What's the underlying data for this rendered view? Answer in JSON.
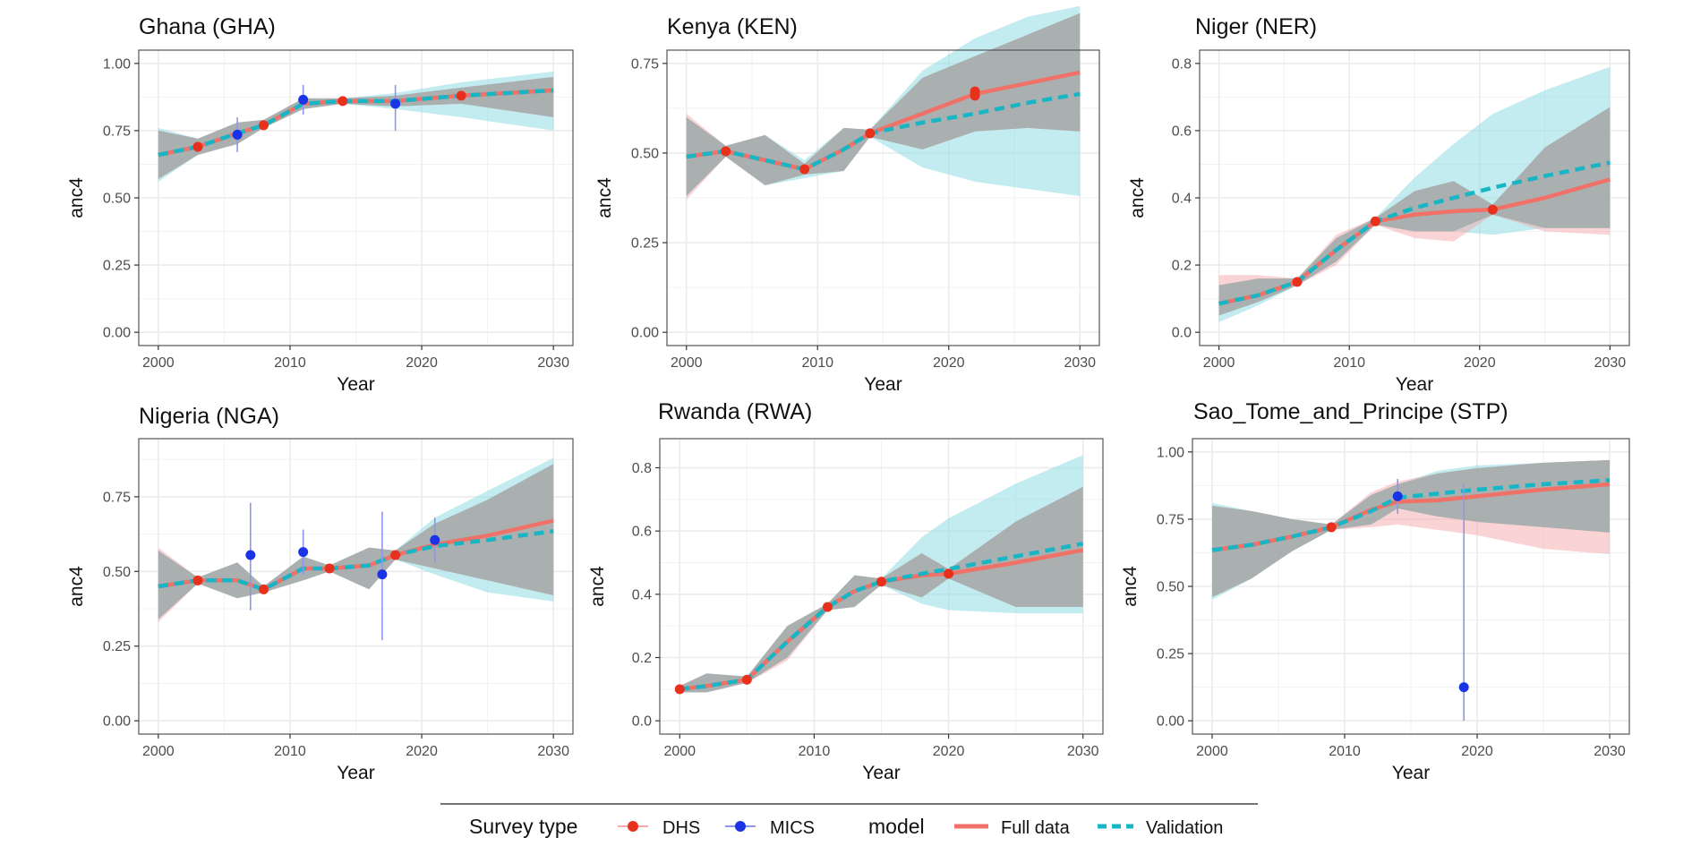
{
  "legend": {
    "survey_title": "Survey type",
    "survey_items": [
      {
        "label": "DHS",
        "color": "#e8311c"
      },
      {
        "label": "MICS",
        "color": "#1a33e6"
      }
    ],
    "model_title": "model",
    "model_items": [
      {
        "label": "Full data",
        "color": "#f07167",
        "dash": false
      },
      {
        "label": "Validation",
        "color": "#18b5c4",
        "dash": true
      }
    ]
  },
  "colors": {
    "full_line": "#f07167",
    "full_band": "#f5a9a9",
    "val_line": "#18b5c4",
    "val_band": "#8fdce3",
    "overlap_band": "#9aa5a5",
    "dhs": "#e8311c",
    "mics": "#1a33e6",
    "mics_bar": "#8d96ee",
    "grid": "#ebebeb",
    "panel_border": "#555555"
  },
  "chart_data": [
    {
      "type": "line",
      "title": "Ghana (GHA)",
      "xlabel": "Year",
      "ylabel": "anc4",
      "xlim": [
        2000,
        2030
      ],
      "ylim": [
        0,
        1
      ],
      "xticks": [
        "2000",
        "2010",
        "2020",
        "2030"
      ],
      "yticks": [
        "0.00",
        "0.25",
        "0.50",
        "0.75",
        "1.00"
      ],
      "series": [
        {
          "name": "Full data",
          "x": [
            2000,
            2003,
            2006,
            2008,
            2011,
            2014,
            2018,
            2023,
            2030
          ],
          "y": [
            0.66,
            0.69,
            0.74,
            0.77,
            0.85,
            0.86,
            0.86,
            0.88,
            0.9
          ],
          "lower": [
            0.57,
            0.66,
            0.7,
            0.76,
            0.83,
            0.85,
            0.84,
            0.85,
            0.8
          ],
          "upper": [
            0.75,
            0.72,
            0.78,
            0.79,
            0.87,
            0.87,
            0.88,
            0.91,
            0.95
          ]
        },
        {
          "name": "Validation",
          "x": [
            2000,
            2003,
            2006,
            2008,
            2011,
            2014,
            2018,
            2023,
            2030
          ],
          "y": [
            0.66,
            0.69,
            0.74,
            0.77,
            0.85,
            0.86,
            0.86,
            0.88,
            0.9
          ],
          "lower": [
            0.56,
            0.66,
            0.7,
            0.76,
            0.83,
            0.85,
            0.83,
            0.8,
            0.75
          ],
          "upper": [
            0.76,
            0.72,
            0.78,
            0.79,
            0.87,
            0.87,
            0.89,
            0.93,
            0.97
          ]
        }
      ],
      "points": [
        {
          "survey": "DHS",
          "x": 2003,
          "y": 0.69
        },
        {
          "survey": "DHS",
          "x": 2008,
          "y": 0.77
        },
        {
          "survey": "DHS",
          "x": 2014,
          "y": 0.86
        },
        {
          "survey": "DHS",
          "x": 2023,
          "y": 0.88
        },
        {
          "survey": "MICS",
          "x": 2006,
          "y": 0.735,
          "lo": 0.67,
          "hi": 0.8
        },
        {
          "survey": "MICS",
          "x": 2011,
          "y": 0.865,
          "lo": 0.81,
          "hi": 0.92
        },
        {
          "survey": "MICS",
          "x": 2018,
          "y": 0.85,
          "lo": 0.75,
          "hi": 0.92
        }
      ]
    },
    {
      "type": "line",
      "title": "Kenya (KEN)",
      "xlabel": "Year",
      "ylabel": "anc4",
      "xlim": [
        2000,
        2030
      ],
      "ylim": [
        0,
        0.75
      ],
      "xticks": [
        "2000",
        "2010",
        "2020",
        "2030"
      ],
      "yticks": [
        "0.00",
        "0.25",
        "0.50",
        "0.75"
      ],
      "series": [
        {
          "name": "Full data",
          "x": [
            2000,
            2003,
            2006,
            2009,
            2012,
            2014,
            2018,
            2022,
            2026,
            2030
          ],
          "y": [
            0.49,
            0.505,
            0.48,
            0.455,
            0.51,
            0.555,
            0.61,
            0.665,
            0.695,
            0.725
          ],
          "lower": [
            0.37,
            0.49,
            0.41,
            0.44,
            0.45,
            0.545,
            0.51,
            0.56,
            0.57,
            0.56
          ],
          "upper": [
            0.61,
            0.52,
            0.55,
            0.47,
            0.57,
            0.565,
            0.71,
            0.77,
            0.83,
            0.89
          ]
        },
        {
          "name": "Validation",
          "x": [
            2000,
            2003,
            2006,
            2009,
            2012,
            2014,
            2018,
            2022,
            2026,
            2030
          ],
          "y": [
            0.49,
            0.505,
            0.48,
            0.455,
            0.51,
            0.555,
            0.585,
            0.61,
            0.64,
            0.665
          ],
          "lower": [
            0.38,
            0.49,
            0.41,
            0.43,
            0.45,
            0.545,
            0.46,
            0.42,
            0.4,
            0.38
          ],
          "upper": [
            0.6,
            0.52,
            0.55,
            0.48,
            0.57,
            0.565,
            0.73,
            0.82,
            0.88,
            0.91
          ]
        }
      ],
      "points": [
        {
          "survey": "DHS",
          "x": 2003,
          "y": 0.505
        },
        {
          "survey": "DHS",
          "x": 2009,
          "y": 0.455
        },
        {
          "survey": "DHS",
          "x": 2014,
          "y": 0.555
        },
        {
          "survey": "DHS",
          "x": 2022,
          "y": 0.66
        },
        {
          "survey": "DHS",
          "x": 2022,
          "y": 0.672
        }
      ]
    },
    {
      "type": "line",
      "title": "Niger (NER)",
      "xlabel": "Year",
      "ylabel": "anc4",
      "xlim": [
        2000,
        2030
      ],
      "ylim": [
        0,
        0.8
      ],
      "xticks": [
        "2000",
        "2010",
        "2020",
        "2030"
      ],
      "yticks": [
        "0.0",
        "0.2",
        "0.4",
        "0.6",
        "0.8"
      ],
      "series": [
        {
          "name": "Full data",
          "x": [
            2000,
            2003,
            2006,
            2009,
            2012,
            2015,
            2018,
            2021,
            2025,
            2030
          ],
          "y": [
            0.085,
            0.11,
            0.15,
            0.245,
            0.33,
            0.35,
            0.36,
            0.365,
            0.4,
            0.455
          ],
          "lower": [
            0.05,
            0.09,
            0.14,
            0.2,
            0.32,
            0.28,
            0.27,
            0.35,
            0.3,
            0.29
          ],
          "upper": [
            0.17,
            0.17,
            0.16,
            0.29,
            0.34,
            0.42,
            0.45,
            0.38,
            0.55,
            0.67
          ]
        },
        {
          "name": "Validation",
          "x": [
            2000,
            2003,
            2006,
            2009,
            2012,
            2015,
            2018,
            2021,
            2025,
            2030
          ],
          "y": [
            0.085,
            0.11,
            0.15,
            0.245,
            0.33,
            0.37,
            0.4,
            0.43,
            0.465,
            0.505
          ],
          "lower": [
            0.03,
            0.08,
            0.14,
            0.21,
            0.32,
            0.3,
            0.3,
            0.29,
            0.31,
            0.31
          ],
          "upper": [
            0.14,
            0.16,
            0.16,
            0.28,
            0.34,
            0.46,
            0.56,
            0.65,
            0.72,
            0.79
          ]
        }
      ],
      "points": [
        {
          "survey": "DHS",
          "x": 2006,
          "y": 0.15
        },
        {
          "survey": "DHS",
          "x": 2012,
          "y": 0.33
        },
        {
          "survey": "DHS",
          "x": 2021,
          "y": 0.365
        }
      ]
    },
    {
      "type": "line",
      "title": "Nigeria (NGA)",
      "xlabel": "Year",
      "ylabel": "anc4",
      "xlim": [
        2000,
        2030
      ],
      "ylim": [
        0,
        0.9
      ],
      "xticks": [
        "2000",
        "2010",
        "2020",
        "2030"
      ],
      "yticks": [
        "0.00",
        "0.25",
        "0.50",
        "0.75"
      ],
      "series": [
        {
          "name": "Full data",
          "x": [
            2000,
            2003,
            2006,
            2008,
            2011,
            2013,
            2016,
            2018,
            2021,
            2025,
            2030
          ],
          "y": [
            0.45,
            0.47,
            0.47,
            0.44,
            0.51,
            0.51,
            0.52,
            0.555,
            0.59,
            0.62,
            0.67
          ],
          "lower": [
            0.33,
            0.46,
            0.41,
            0.43,
            0.47,
            0.5,
            0.44,
            0.54,
            0.51,
            0.47,
            0.42
          ],
          "upper": [
            0.58,
            0.48,
            0.53,
            0.45,
            0.55,
            0.52,
            0.58,
            0.57,
            0.66,
            0.74,
            0.86
          ]
        },
        {
          "name": "Validation",
          "x": [
            2000,
            2003,
            2006,
            2008,
            2011,
            2013,
            2016,
            2018,
            2021,
            2025,
            2030
          ],
          "y": [
            0.45,
            0.47,
            0.47,
            0.44,
            0.51,
            0.51,
            0.52,
            0.555,
            0.585,
            0.605,
            0.635
          ],
          "lower": [
            0.34,
            0.46,
            0.41,
            0.43,
            0.47,
            0.5,
            0.44,
            0.54,
            0.49,
            0.43,
            0.4
          ],
          "upper": [
            0.57,
            0.48,
            0.53,
            0.45,
            0.55,
            0.52,
            0.58,
            0.57,
            0.68,
            0.77,
            0.88
          ]
        }
      ],
      "points": [
        {
          "survey": "DHS",
          "x": 2003,
          "y": 0.47
        },
        {
          "survey": "DHS",
          "x": 2008,
          "y": 0.44
        },
        {
          "survey": "DHS",
          "x": 2013,
          "y": 0.51
        },
        {
          "survey": "DHS",
          "x": 2018,
          "y": 0.555
        },
        {
          "survey": "MICS",
          "x": 2007,
          "y": 0.555,
          "lo": 0.37,
          "hi": 0.73
        },
        {
          "survey": "MICS",
          "x": 2011,
          "y": 0.565,
          "lo": 0.49,
          "hi": 0.64
        },
        {
          "survey": "MICS",
          "x": 2017,
          "y": 0.49,
          "lo": 0.27,
          "hi": 0.7
        },
        {
          "survey": "MICS",
          "x": 2021,
          "y": 0.605,
          "lo": 0.53,
          "hi": 0.68
        }
      ]
    },
    {
      "type": "line",
      "title": "Rwanda (RWA)",
      "xlabel": "Year",
      "ylabel": "anc4",
      "xlim": [
        2000,
        2030
      ],
      "ylim": [
        0,
        0.85
      ],
      "xticks": [
        "2000",
        "2010",
        "2020",
        "2030"
      ],
      "yticks": [
        "0.0",
        "0.2",
        "0.4",
        "0.6",
        "0.8"
      ],
      "series": [
        {
          "name": "Full data",
          "x": [
            2000,
            2002,
            2005,
            2008,
            2011,
            2013,
            2015,
            2018,
            2020,
            2025,
            2030
          ],
          "y": [
            0.1,
            0.11,
            0.13,
            0.25,
            0.36,
            0.41,
            0.44,
            0.46,
            0.465,
            0.5,
            0.54
          ],
          "lower": [
            0.09,
            0.09,
            0.12,
            0.19,
            0.35,
            0.36,
            0.43,
            0.39,
            0.45,
            0.36,
            0.36
          ],
          "upper": [
            0.11,
            0.15,
            0.14,
            0.3,
            0.37,
            0.46,
            0.45,
            0.53,
            0.48,
            0.63,
            0.74
          ]
        },
        {
          "name": "Validation",
          "x": [
            2000,
            2002,
            2005,
            2008,
            2011,
            2013,
            2015,
            2018,
            2020,
            2025,
            2030
          ],
          "y": [
            0.1,
            0.11,
            0.13,
            0.25,
            0.36,
            0.41,
            0.44,
            0.465,
            0.48,
            0.52,
            0.56
          ],
          "lower": [
            0.09,
            0.09,
            0.12,
            0.2,
            0.35,
            0.36,
            0.43,
            0.37,
            0.35,
            0.34,
            0.34
          ],
          "upper": [
            0.11,
            0.15,
            0.14,
            0.3,
            0.37,
            0.46,
            0.45,
            0.58,
            0.64,
            0.75,
            0.84
          ]
        }
      ],
      "points": [
        {
          "survey": "DHS",
          "x": 2000,
          "y": 0.1
        },
        {
          "survey": "DHS",
          "x": 2005,
          "y": 0.13
        },
        {
          "survey": "DHS",
          "x": 2011,
          "y": 0.36
        },
        {
          "survey": "DHS",
          "x": 2015,
          "y": 0.44
        },
        {
          "survey": "DHS",
          "x": 2020,
          "y": 0.465
        }
      ]
    },
    {
      "type": "line",
      "title": "Sao_Tome_and_Principe (STP)",
      "xlabel": "Year",
      "ylabel": "anc4",
      "xlim": [
        2000,
        2030
      ],
      "ylim": [
        0,
        1
      ],
      "xticks": [
        "2000",
        "2010",
        "2020",
        "2030"
      ],
      "yticks": [
        "0.00",
        "0.25",
        "0.50",
        "0.75",
        "1.00"
      ],
      "series": [
        {
          "name": "Full data",
          "x": [
            2000,
            2003,
            2006,
            2009,
            2012,
            2014,
            2017,
            2020,
            2025,
            2030
          ],
          "y": [
            0.635,
            0.655,
            0.685,
            0.72,
            0.785,
            0.815,
            0.82,
            0.835,
            0.86,
            0.88
          ],
          "lower": [
            0.46,
            0.53,
            0.63,
            0.71,
            0.72,
            0.73,
            0.71,
            0.69,
            0.64,
            0.62
          ],
          "upper": [
            0.8,
            0.78,
            0.75,
            0.73,
            0.85,
            0.89,
            0.92,
            0.94,
            0.96,
            0.97
          ]
        },
        {
          "name": "Validation",
          "x": [
            2000,
            2003,
            2006,
            2009,
            2012,
            2014,
            2017,
            2020,
            2025,
            2030
          ],
          "y": [
            0.635,
            0.655,
            0.685,
            0.72,
            0.78,
            0.83,
            0.845,
            0.86,
            0.88,
            0.895
          ],
          "lower": [
            0.45,
            0.53,
            0.63,
            0.71,
            0.73,
            0.79,
            0.76,
            0.74,
            0.72,
            0.7
          ],
          "upper": [
            0.81,
            0.78,
            0.75,
            0.73,
            0.84,
            0.88,
            0.93,
            0.95,
            0.96,
            0.97
          ]
        }
      ],
      "points": [
        {
          "survey": "DHS",
          "x": 2009,
          "y": 0.72
        },
        {
          "survey": "MICS",
          "x": 2014,
          "y": 0.835,
          "lo": 0.77,
          "hi": 0.9
        },
        {
          "survey": "MICS",
          "x": 2019,
          "y": 0.125,
          "lo": 0.0,
          "hi": 0.88
        }
      ]
    }
  ]
}
